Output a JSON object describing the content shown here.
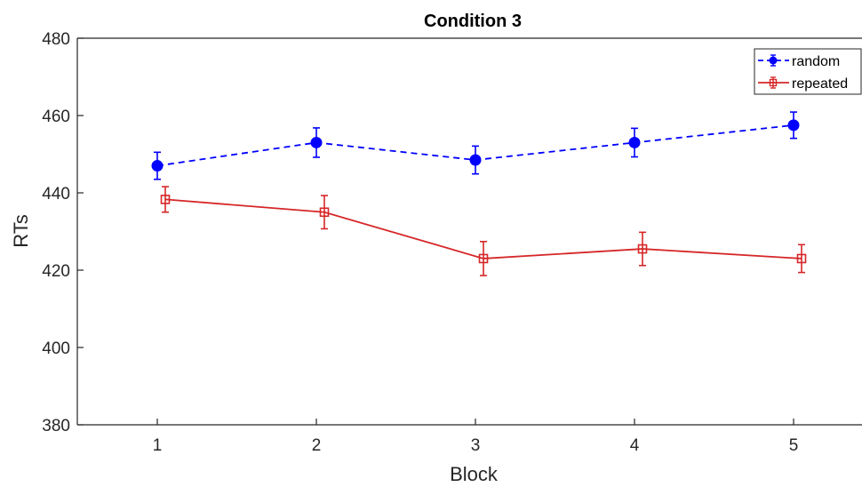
{
  "chart_data": {
    "type": "line",
    "title": "Condition 3",
    "xlabel": "Block",
    "ylabel": "RTs",
    "x": [
      1,
      2,
      3,
      4,
      5
    ],
    "xticks": [
      "1",
      "2",
      "3",
      "4",
      "5"
    ],
    "yticks": [
      "380",
      "400",
      "420",
      "440",
      "460",
      "480"
    ],
    "xlim": [
      0.5,
      5.5
    ],
    "ylim": [
      380,
      480
    ],
    "grid": false,
    "legend_position": "top-right",
    "series": [
      {
        "name": "random",
        "color": "#0000ff",
        "line_style": "dashed",
        "marker": "filled-circle",
        "values": [
          447,
          453,
          448.5,
          453,
          457.5
        ],
        "errors": [
          3.5,
          3.8,
          3.6,
          3.7,
          3.4
        ]
      },
      {
        "name": "repeated",
        "color": "#d62728",
        "line_style": "solid",
        "marker": "open-square",
        "values": [
          438.3,
          435,
          423,
          425.5,
          423
        ],
        "errors": [
          3.3,
          4.3,
          4.4,
          4.3,
          3.6
        ]
      }
    ]
  }
}
